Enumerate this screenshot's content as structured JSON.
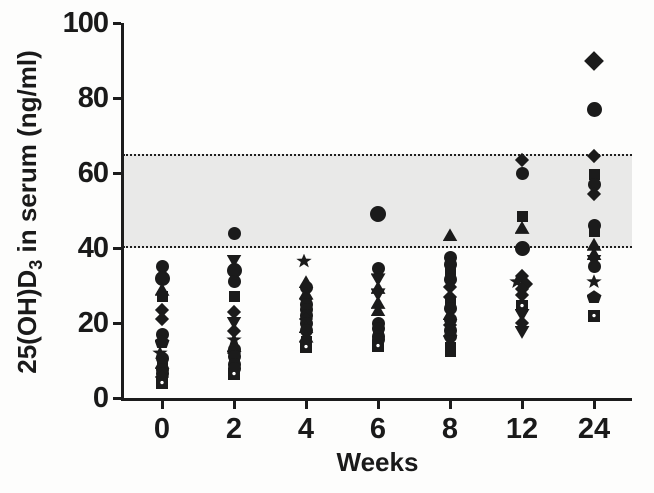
{
  "chart_data": {
    "type": "scatter",
    "title": "",
    "xlabel": "Weeks",
    "ylabel": {
      "prefix": "25(OH)D",
      "sub": "3",
      "suffix": " in serum (ng/ml)"
    },
    "x_categories": [
      "0",
      "2",
      "4",
      "6",
      "8",
      "12",
      "24"
    ],
    "y_ticks": [
      0,
      20,
      40,
      60,
      80,
      100
    ],
    "ylim": [
      0,
      100
    ],
    "grid": "off",
    "legend": "none",
    "reference_band": {
      "low": 40,
      "high": 65
    },
    "marker_color": "#1b1b1b",
    "band_color": "#e9e9e8",
    "groups": [
      {
        "week": "0",
        "points": [
          {
            "v": 35,
            "s": "circle"
          },
          {
            "v": 32,
            "s": "circle",
            "size": 15
          },
          {
            "v": 29,
            "s": "tri-up"
          },
          {
            "v": 27,
            "s": "square"
          },
          {
            "v": 23.5,
            "s": "diamond"
          },
          {
            "v": 21,
            "s": "diamond"
          },
          {
            "v": 17,
            "s": "circle"
          },
          {
            "v": 15,
            "s": "pentagon"
          },
          {
            "v": 12,
            "s": "star",
            "dx": -2
          },
          {
            "v": 10.5,
            "s": "circle"
          },
          {
            "v": 9.5,
            "s": "tri-up"
          },
          {
            "v": 8.5,
            "s": "square"
          },
          {
            "v": 7.5,
            "s": "circle"
          },
          {
            "v": 6.5,
            "s": "circle"
          },
          {
            "v": 5.5,
            "s": "diamond"
          },
          {
            "v": 4,
            "s": "square-dot"
          }
        ]
      },
      {
        "week": "2",
        "points": [
          {
            "v": 44,
            "s": "circle"
          },
          {
            "v": 36.5,
            "s": "tri-down"
          },
          {
            "v": 34,
            "s": "circle",
            "size": 15
          },
          {
            "v": 31,
            "s": "circle"
          },
          {
            "v": 27,
            "s": "square"
          },
          {
            "v": 23,
            "s": "diamond"
          },
          {
            "v": 20,
            "s": "tri-down"
          },
          {
            "v": 18,
            "s": "diamond"
          },
          {
            "v": 15.5,
            "s": "star"
          },
          {
            "v": 14,
            "s": "tri-up"
          },
          {
            "v": 13,
            "s": "circle"
          },
          {
            "v": 12,
            "s": "diamond"
          },
          {
            "v": 11,
            "s": "circle"
          },
          {
            "v": 10,
            "s": "square"
          },
          {
            "v": 9,
            "s": "circle"
          },
          {
            "v": 8,
            "s": "circle"
          },
          {
            "v": 6.5,
            "s": "square-dot"
          }
        ]
      },
      {
        "week": "4",
        "points": [
          {
            "v": 36.5,
            "s": "star",
            "dx": -2
          },
          {
            "v": 31,
            "s": "tri-up"
          },
          {
            "v": 29.5,
            "s": "circle"
          },
          {
            "v": 28,
            "s": "tri-up"
          },
          {
            "v": 26.5,
            "s": "diamond"
          },
          {
            "v": 25,
            "s": "circle"
          },
          {
            "v": 23.5,
            "s": "circle"
          },
          {
            "v": 22,
            "s": "circle"
          },
          {
            "v": 21,
            "s": "diamond"
          },
          {
            "v": 20,
            "s": "circle"
          },
          {
            "v": 19,
            "s": "tri-up"
          },
          {
            "v": 18,
            "s": "circle"
          },
          {
            "v": 16.5,
            "s": "tri-up"
          },
          {
            "v": 15,
            "s": "square"
          },
          {
            "v": 13.5,
            "s": "square-dot"
          }
        ]
      },
      {
        "week": "6",
        "points": [
          {
            "v": 49,
            "s": "circle",
            "size": 16
          },
          {
            "v": 34.5,
            "s": "circle"
          },
          {
            "v": 31.5,
            "s": "tri-down"
          },
          {
            "v": 29.5,
            "s": "tri-up"
          },
          {
            "v": 27.5,
            "s": "tri-down"
          },
          {
            "v": 25.5,
            "s": "tri-up"
          },
          {
            "v": 23.5,
            "s": "tri-up"
          },
          {
            "v": 20,
            "s": "circle"
          },
          {
            "v": 18.5,
            "s": "circle"
          },
          {
            "v": 17.5,
            "s": "square"
          },
          {
            "v": 16.5,
            "s": "circle"
          },
          {
            "v": 15.5,
            "s": "circle"
          },
          {
            "v": 14,
            "s": "square-dot"
          }
        ]
      },
      {
        "week": "8",
        "points": [
          {
            "v": 43.5,
            "s": "tri-up"
          },
          {
            "v": 37.5,
            "s": "circle"
          },
          {
            "v": 35.5,
            "s": "circle"
          },
          {
            "v": 33.5,
            "s": "square"
          },
          {
            "v": 31.5,
            "s": "circle"
          },
          {
            "v": 29.5,
            "s": "diamond"
          },
          {
            "v": 27,
            "s": "diamond"
          },
          {
            "v": 25.5,
            "s": "square"
          },
          {
            "v": 24,
            "s": "circle"
          },
          {
            "v": 22.5,
            "s": "tri-up"
          },
          {
            "v": 21,
            "s": "circle"
          },
          {
            "v": 19.5,
            "s": "diamond"
          },
          {
            "v": 18,
            "s": "circle"
          },
          {
            "v": 16.5,
            "s": "circle"
          },
          {
            "v": 15,
            "s": "tri-down"
          },
          {
            "v": 13.5,
            "s": "square"
          },
          {
            "v": 12.5,
            "s": "square"
          }
        ]
      },
      {
        "week": "12",
        "points": [
          {
            "v": 63.5,
            "s": "diamond"
          },
          {
            "v": 60,
            "s": "circle"
          },
          {
            "v": 48.5,
            "s": "square"
          },
          {
            "v": 45.5,
            "s": "tri-up"
          },
          {
            "v": 40,
            "s": "circle",
            "size": 15
          },
          {
            "v": 32.5,
            "s": "diamond"
          },
          {
            "v": 31,
            "s": "star",
            "dx": -5
          },
          {
            "v": 30.5,
            "s": "diamond",
            "dx": 4
          },
          {
            "v": 29,
            "s": "diamond"
          },
          {
            "v": 27.5,
            "s": "diamond"
          },
          {
            "v": 24.5,
            "s": "square-dot"
          },
          {
            "v": 22,
            "s": "tri-down"
          },
          {
            "v": 20,
            "s": "diamond"
          },
          {
            "v": 17.5,
            "s": "tri-down"
          }
        ]
      },
      {
        "week": "24",
        "points": [
          {
            "v": 90,
            "s": "diamond",
            "size": 14
          },
          {
            "v": 77,
            "s": "circle",
            "size": 15
          },
          {
            "v": 64.5,
            "s": "diamond"
          },
          {
            "v": 59.5,
            "s": "square"
          },
          {
            "v": 57,
            "s": "circle"
          },
          {
            "v": 54.5,
            "s": "diamond"
          },
          {
            "v": 46,
            "s": "circle"
          },
          {
            "v": 44.5,
            "s": "square"
          },
          {
            "v": 41,
            "s": "tri-up"
          },
          {
            "v": 38.5,
            "s": "tri-up"
          },
          {
            "v": 36.5,
            "s": "tri-down"
          },
          {
            "v": 35,
            "s": "circle"
          },
          {
            "v": 31,
            "s": "star"
          },
          {
            "v": 27,
            "s": "pentagon"
          },
          {
            "v": 22,
            "s": "square-dot"
          }
        ]
      }
    ]
  }
}
